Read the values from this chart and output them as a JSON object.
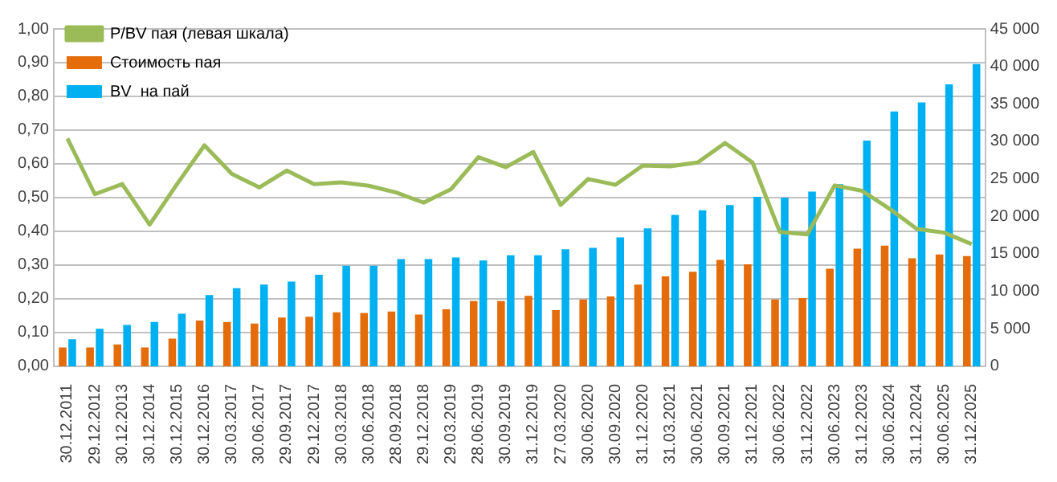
{
  "chart_data": {
    "type": "bar",
    "categories": [
      "30.12.2011",
      "29.12.2012",
      "30.12.2013",
      "30.12.2014",
      "30.12.2015",
      "30.12.2016",
      "30.03.2017",
      "30.06.2017",
      "29.09.2017",
      "29.12.2017",
      "30.03.2018",
      "30.06.2018",
      "28.09.2018",
      "29.12.2018",
      "29.03.2019",
      "28.06.2019",
      "30.09.2019",
      "31.12.2019",
      "27.03.2020",
      "30.06.2020",
      "30.09.2020",
      "31.12.2020",
      "31.03.2021",
      "30.06.2021",
      "30.09.2021",
      "31.12.2021",
      "30.06.2022",
      "31.12.2022",
      "30.06.2023",
      "31.12.2023",
      "30.06.2024",
      "31.12.2024",
      "30.06.2025",
      "31.12.2025"
    ],
    "series": [
      {
        "name": "Стоимость пая",
        "color": "#e46c0a",
        "axis": "y2",
        "values": [
          2500,
          2500,
          2900,
          2500,
          3700,
          6100,
          5900,
          5700,
          6500,
          6600,
          7200,
          7100,
          7300,
          6900,
          7600,
          8700,
          8700,
          9400,
          7500,
          8900,
          9300,
          10900,
          12000,
          12600,
          14200,
          13600,
          8900,
          9100,
          13000,
          15700,
          16100,
          14400,
          14900,
          14700
        ]
      },
      {
        "name": "BV  на пай",
        "color": "#00b0f0",
        "axis": "y2",
        "values": [
          3600,
          5000,
          5500,
          5900,
          7000,
          9500,
          10400,
          10900,
          11300,
          12200,
          13400,
          13400,
          14300,
          14300,
          14500,
          14100,
          14800,
          14800,
          15600,
          15800,
          17200,
          18400,
          20200,
          20800,
          21500,
          22600,
          22500,
          23300,
          24300,
          30100,
          34000,
          35200,
          37600,
          40300
        ]
      },
      {
        "name": "P/BV пая (левая шкала)",
        "type": "line",
        "color": "#9bbb59",
        "values": [
          0.675,
          0.51,
          0.54,
          0.42,
          0.54,
          0.655,
          0.57,
          0.53,
          0.58,
          0.54,
          0.545,
          0.535,
          0.515,
          0.485,
          0.525,
          0.62,
          0.59,
          0.635,
          0.478,
          0.555,
          0.538,
          0.595,
          0.593,
          0.604,
          0.662,
          0.604,
          0.398,
          0.391,
          0.536,
          0.52,
          0.467,
          0.407,
          0.396,
          0.362
        ]
      }
    ],
    "ylim": [
      0,
      1
    ],
    "yticks": [
      {
        "value": 0,
        "label": "0,00"
      },
      {
        "value": 0.1,
        "label": "0,10"
      },
      {
        "value": 0.2,
        "label": "0,20"
      },
      {
        "value": 0.3,
        "label": "0,30"
      },
      {
        "value": 0.4,
        "label": "0,40"
      },
      {
        "value": 0.5,
        "label": "0,50"
      },
      {
        "value": 0.6,
        "label": "0,60"
      },
      {
        "value": 0.7,
        "label": "0,70"
      },
      {
        "value": 0.8,
        "label": "0,80"
      },
      {
        "value": 0.9,
        "label": "0,90"
      },
      {
        "value": 1,
        "label": "1,00"
      }
    ],
    "y2lim": [
      0,
      45000
    ],
    "y2ticks": [
      0,
      {
        "value": 5000,
        "label": "5 000"
      },
      {
        "value": 10000,
        "label": "10 000"
      },
      {
        "value": 15000,
        "label": "15 000"
      },
      {
        "value": 20000,
        "label": "20 000"
      },
      {
        "value": 25000,
        "label": "25 000"
      },
      {
        "value": 30000,
        "label": "30 000"
      },
      {
        "value": 35000,
        "label": "35 000"
      },
      {
        "value": 40000,
        "label": "40 000"
      },
      {
        "value": 45000,
        "label": "45 000"
      }
    ],
    "grid": "y",
    "legend": "top left",
    "marker": "none"
  }
}
